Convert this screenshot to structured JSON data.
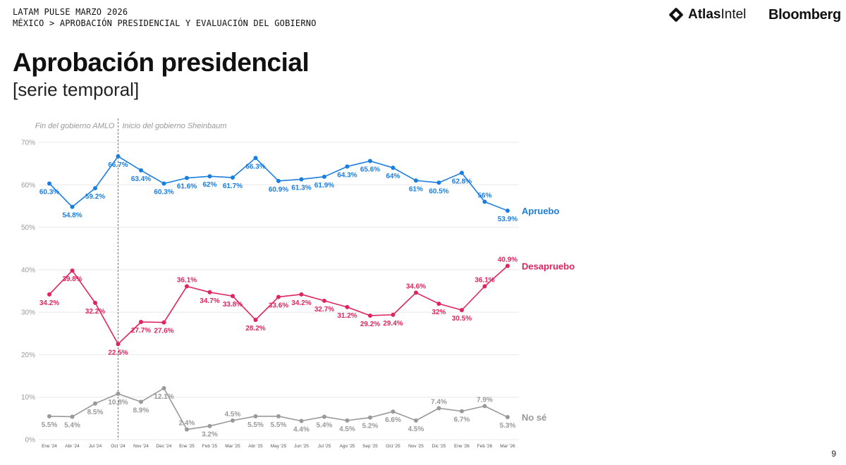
{
  "header": {
    "line1": "LATAM PULSE MARZO 2026",
    "line2": "MÉXICO > APROBACIÓN PRESIDENCIAL Y EVALUACIÓN DEL GOBIERNO"
  },
  "logos": {
    "atlas_bold": "Atlas",
    "atlas_rest": "Intel",
    "bloomberg": "Bloomberg"
  },
  "title": "Aprobación presidencial",
  "subtitle": "[serie temporal]",
  "page_number": "9",
  "colors": {
    "approve": "#1a7ee0",
    "disapprove": "#e0245e",
    "unsure": "#999999",
    "grid": "#e8e8e8"
  },
  "chart_data": {
    "type": "line",
    "title": "Aprobación presidencial",
    "categories": [
      "Ene '24",
      "Abr '24",
      "Jul '24",
      "Oct '24",
      "Nov '24",
      "Dec '24",
      "Ene '25",
      "Feb '25",
      "Mar '25",
      "Abr '25",
      "May '25",
      "Jun '25",
      "Jul '25",
      "Ago '25",
      "Sep '25",
      "Oct '25",
      "Nov '25",
      "Dic '25",
      "Ene '26",
      "Feb '26",
      "Mar '26"
    ],
    "y_ticks": [
      "0%",
      "10%",
      "20%",
      "30%",
      "40%",
      "50%",
      "60%",
      "70%"
    ],
    "ylim": [
      0,
      70
    ],
    "periods": {
      "before": "Fin del gobierno AMLO",
      "after": "Inicio del gobierno Sheinbaum",
      "divider_after_index": 3
    },
    "series": [
      {
        "name": "Apruebo",
        "color_key": "approve",
        "values": [
          60.3,
          54.8,
          59.2,
          66.7,
          63.4,
          60.3,
          61.6,
          62,
          61.7,
          66.3,
          60.9,
          61.3,
          61.9,
          64.3,
          65.6,
          64,
          61,
          60.5,
          62.8,
          56,
          53.9
        ],
        "labels": [
          "60.3%",
          "54.8%",
          "59.2%",
          "66.7%",
          "63.4%",
          "60.3%",
          "61.6%",
          "62%",
          "61.7%",
          "66.3%",
          "60.9%",
          "61.3%",
          "61.9%",
          "64.3%",
          "65.6%",
          "64%",
          "61%",
          "60.5%",
          "62.8%",
          "56%",
          "53.9%"
        ]
      },
      {
        "name": "Desapruebo",
        "color_key": "disapprove",
        "values": [
          34.2,
          39.8,
          32.2,
          22.5,
          27.7,
          27.6,
          36.1,
          34.7,
          33.8,
          28.2,
          33.6,
          34.2,
          32.7,
          31.2,
          29.2,
          29.4,
          34.6,
          32,
          30.5,
          36.1,
          40.9
        ],
        "labels": [
          "34.2%",
          "39.8%",
          "32.2%",
          "22.5%",
          "27.7%",
          "27.6%",
          "36.1%",
          "34.7%",
          "33.8%",
          "28.2%",
          "33.6%",
          "34.2%",
          "32.7%",
          "31.2%",
          "29.2%",
          "29.4%",
          "34.6%",
          "32%",
          "30.5%",
          "36.1%",
          "40.9%"
        ]
      },
      {
        "name": "No sé",
        "color_key": "unsure",
        "values": [
          5.5,
          5.4,
          8.5,
          10.8,
          8.9,
          12.1,
          2.4,
          3.2,
          4.5,
          5.5,
          5.5,
          4.4,
          5.4,
          4.5,
          5.2,
          6.6,
          4.5,
          7.4,
          6.7,
          7.9,
          5.3
        ],
        "labels": [
          "5.5%",
          "5.4%",
          "8.5%",
          "10.8%",
          "8.9%",
          "12.1%",
          "2.4%",
          "3.2%",
          "4.5%",
          "5.5%",
          "5.5%",
          "4.4%",
          "5.4%",
          "4.5%",
          "5.2%",
          "6.6%",
          "4.5%",
          "7.4%",
          "6.7%",
          "7.9%",
          "5.3%"
        ]
      }
    ]
  }
}
